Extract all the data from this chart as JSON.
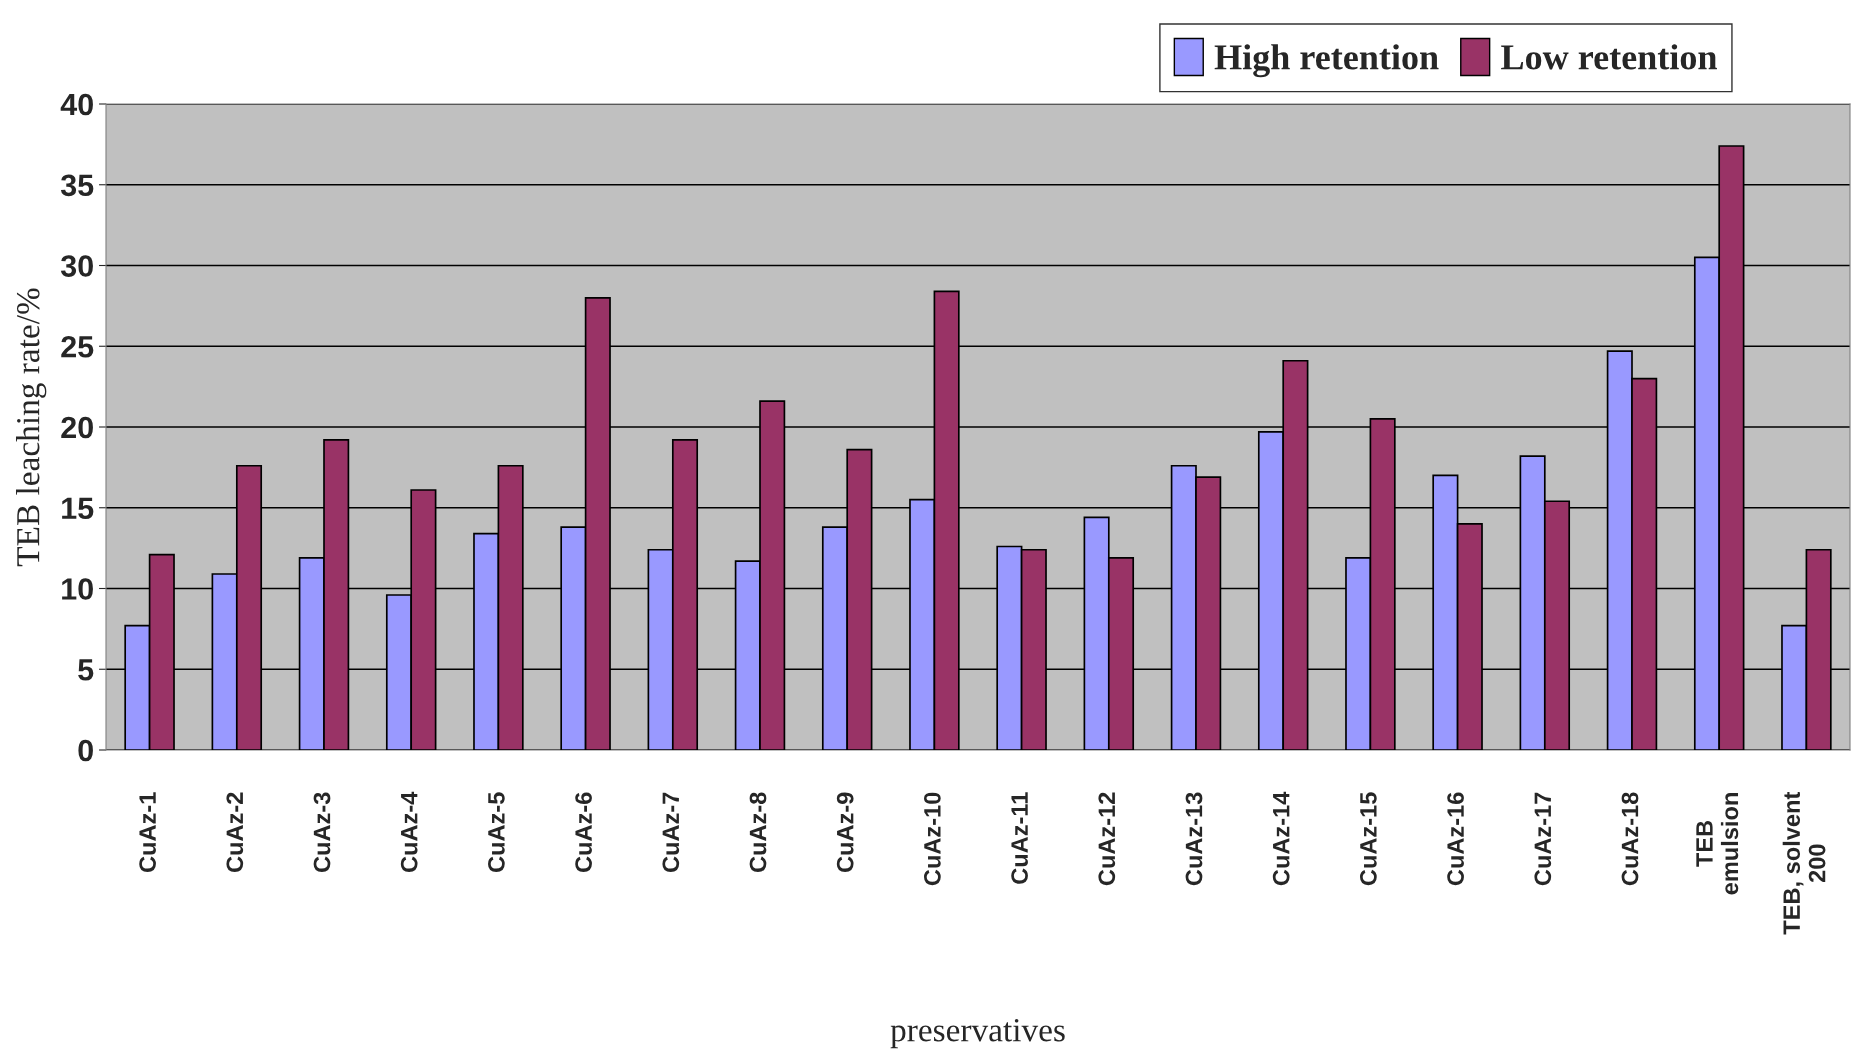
{
  "chart_data": {
    "type": "bar",
    "xlabel": "preservatives",
    "ylabel": "TEB leaching rate/%",
    "categories": [
      "CuAz-1",
      "CuAz-2",
      "CuAz-3",
      "CuAz-4",
      "CuAz-5",
      "CuAz-6",
      "CuAz-7",
      "CuAz-8",
      "CuAz-9",
      "CuAz-10",
      "CuAz-11",
      "CuAz-12",
      "CuAz-13",
      "CuAz-14",
      "CuAz-15",
      "CuAz-16",
      "CuAz-17",
      "CuAz-18",
      "TEB\nemulsion",
      "TEB, solvent\n200"
    ],
    "series": [
      {
        "name": "High retention",
        "color": "#9999ff",
        "values": [
          7.7,
          10.9,
          11.9,
          9.6,
          13.4,
          13.8,
          12.4,
          11.7,
          13.8,
          15.5,
          12.6,
          14.4,
          17.6,
          19.7,
          11.9,
          17.0,
          18.2,
          24.7,
          30.5,
          7.7
        ]
      },
      {
        "name": "Low retention",
        "color": "#993366",
        "values": [
          12.1,
          17.6,
          19.2,
          16.1,
          17.6,
          28.0,
          19.2,
          21.6,
          18.6,
          28.4,
          12.4,
          11.9,
          16.9,
          24.1,
          20.5,
          14.0,
          15.4,
          23.0,
          37.4,
          12.4
        ]
      }
    ],
    "ylim": [
      0,
      40
    ],
    "yticks": [
      0,
      5,
      10,
      15,
      20,
      25,
      30,
      35,
      40
    ],
    "grid": "y",
    "legend": "top right"
  }
}
